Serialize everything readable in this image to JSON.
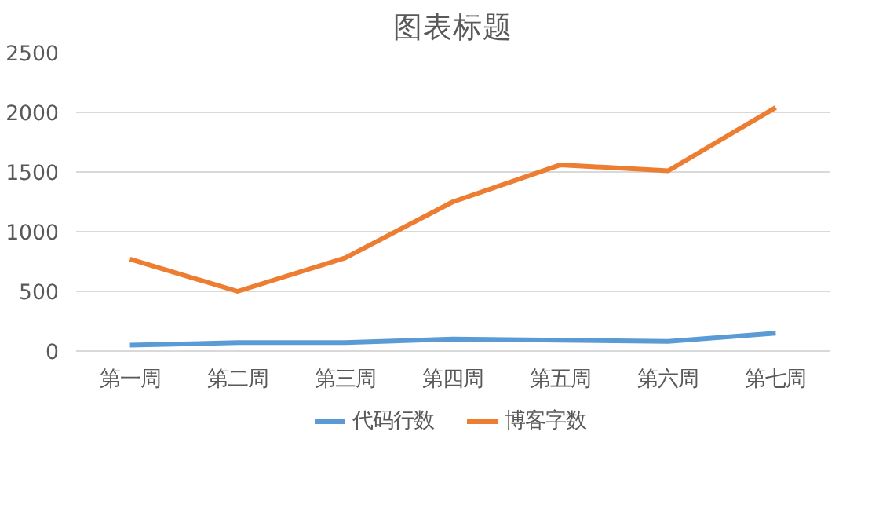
{
  "chart_data": {
    "type": "line",
    "title": "图表标题",
    "categories": [
      "第一周",
      "第二周",
      "第三周",
      "第四周",
      "第五周",
      "第六周",
      "第七周"
    ],
    "series": [
      {
        "name": "代码行数",
        "color": "#5b9bd5",
        "values": [
          50,
          70,
          70,
          100,
          90,
          80,
          150
        ]
      },
      {
        "name": "博客字数",
        "color": "#ed7d31",
        "values": [
          770,
          500,
          780,
          1250,
          1560,
          1510,
          2040
        ]
      }
    ],
    "ylim": [
      0,
      2500
    ],
    "yticks": [
      0,
      500,
      1000,
      1500,
      2000,
      2500
    ],
    "grid": "y",
    "legend": "bottom",
    "marker": "none",
    "line_style": "solid"
  }
}
